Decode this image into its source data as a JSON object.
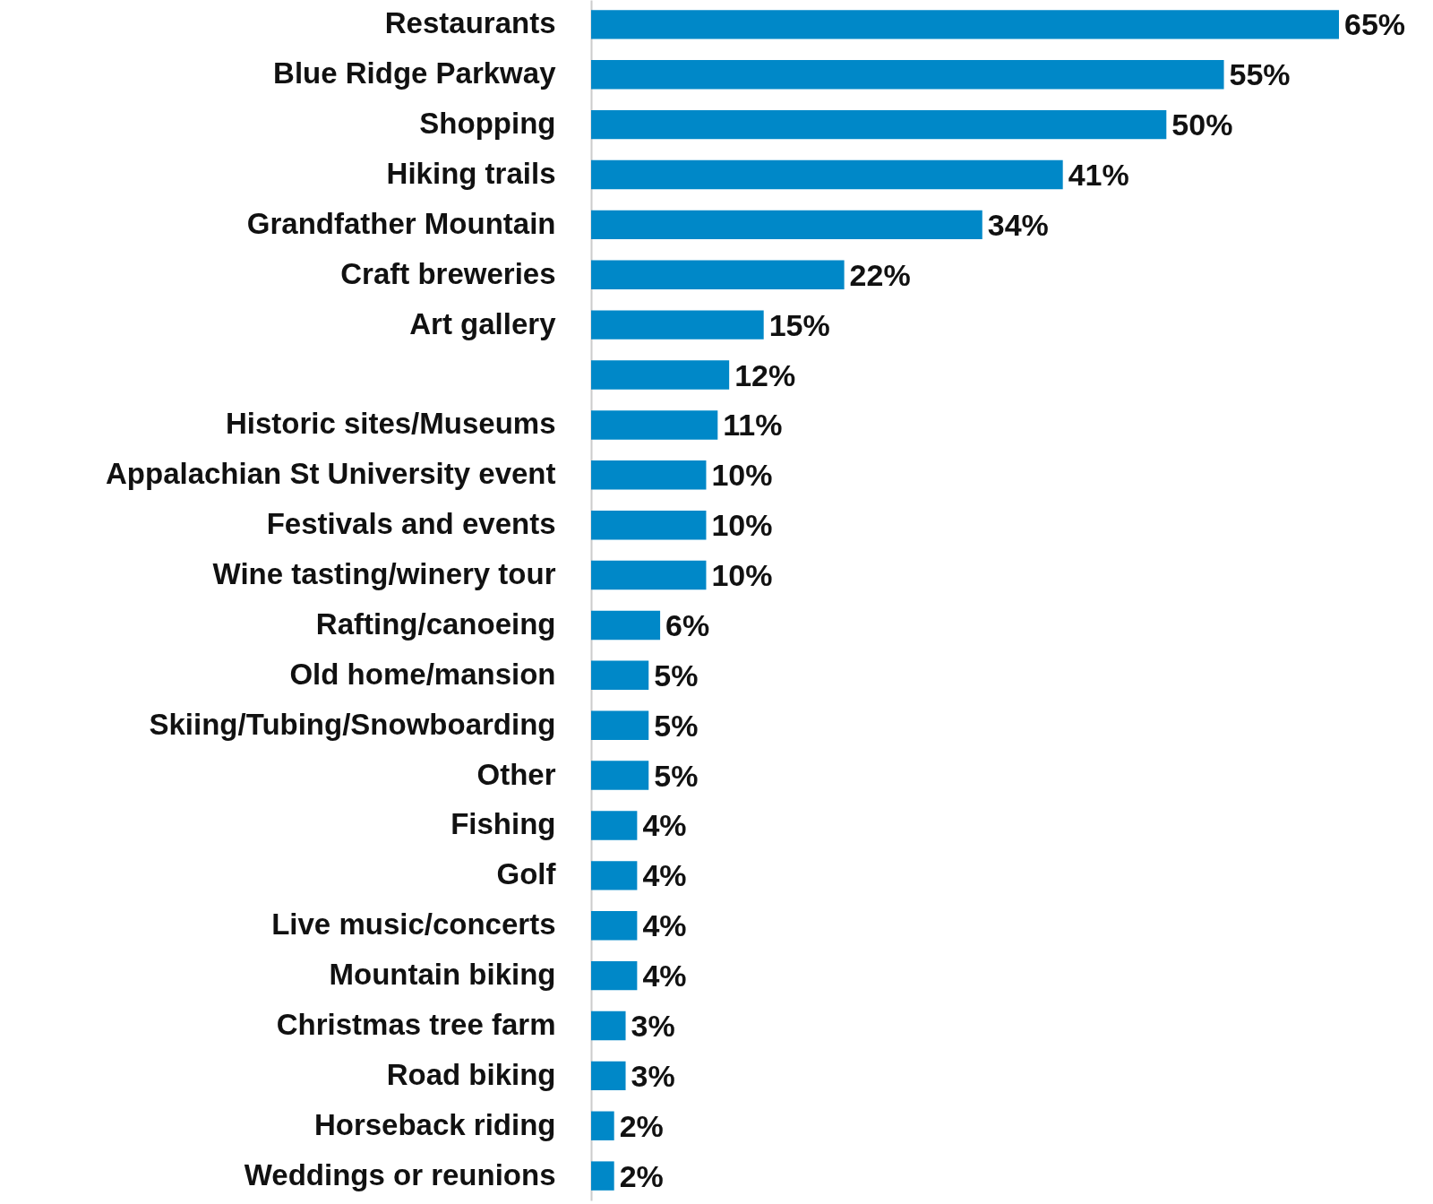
{
  "chart_data": {
    "type": "bar",
    "orientation": "horizontal",
    "color": "#0088c8",
    "categories": [
      "Restaurants",
      "Blue Ridge Parkway",
      "Shopping",
      "Hiking trails",
      "Grandfather Mountain",
      "Craft breweries",
      "Art gallery",
      null,
      "Historic sites/Museums",
      "Appalachian St University event",
      "Festivals and events",
      "Wine tasting/winery tour",
      "Rafting/canoeing",
      "Old home/mansion",
      "Skiing/Tubing/Snowboarding",
      "Other",
      "Fishing",
      "Golf",
      "Live music/concerts",
      "Mountain biking",
      "Christmas tree farm",
      "Road biking",
      "Horseback riding",
      "Weddings or reunions"
    ],
    "values": [
      65,
      55,
      50,
      41,
      34,
      22,
      15,
      12,
      11,
      10,
      10,
      10,
      6,
      5,
      5,
      5,
      4,
      4,
      4,
      4,
      3,
      3,
      2,
      2
    ],
    "value_labels": [
      "65%",
      "55%",
      "50%",
      "41%",
      "34%",
      "22%",
      "15%",
      "12%",
      "11%",
      "10%",
      "10%",
      "10%",
      "6%",
      "5%",
      "5%",
      "5%",
      "4%",
      "4%",
      "4%",
      "4%",
      "3%",
      "3%",
      "2%",
      "2%"
    ]
  }
}
